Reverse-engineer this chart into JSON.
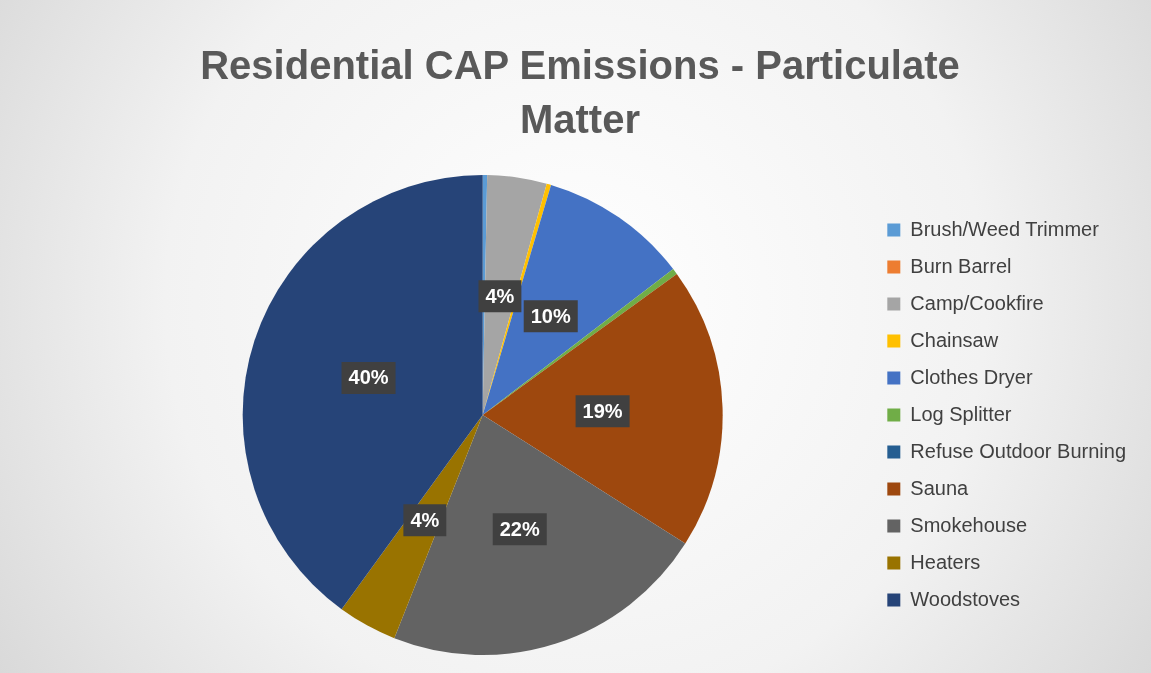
{
  "chart_data": {
    "type": "pie",
    "title": "Residential CAP Emissions - Particulate Matter",
    "categories": [
      "Brush/Weed Trimmer",
      "Burn Barrel",
      "Camp/Cookfire",
      "Chainsaw",
      "Clothes Dryer",
      "Log Splitter",
      "Refuse Outdoor Burning",
      "Sauna",
      "Smokehouse",
      "Heaters",
      "Woodstoves"
    ],
    "values": [
      0.3,
      0,
      4,
      0.3,
      10,
      0.4,
      0,
      19,
      22,
      4,
      40
    ],
    "value_labels": [
      null,
      null,
      "4%",
      null,
      "10%",
      null,
      null,
      "19%",
      "22%",
      "4%",
      "40%"
    ],
    "colors": [
      "#5b9bd5",
      "#ed7d31",
      "#a5a5a5",
      "#ffc000",
      "#4472c4",
      "#70ad47",
      "#255e91",
      "#9e480e",
      "#636363",
      "#997300",
      "#264478"
    ],
    "legend": "right"
  }
}
